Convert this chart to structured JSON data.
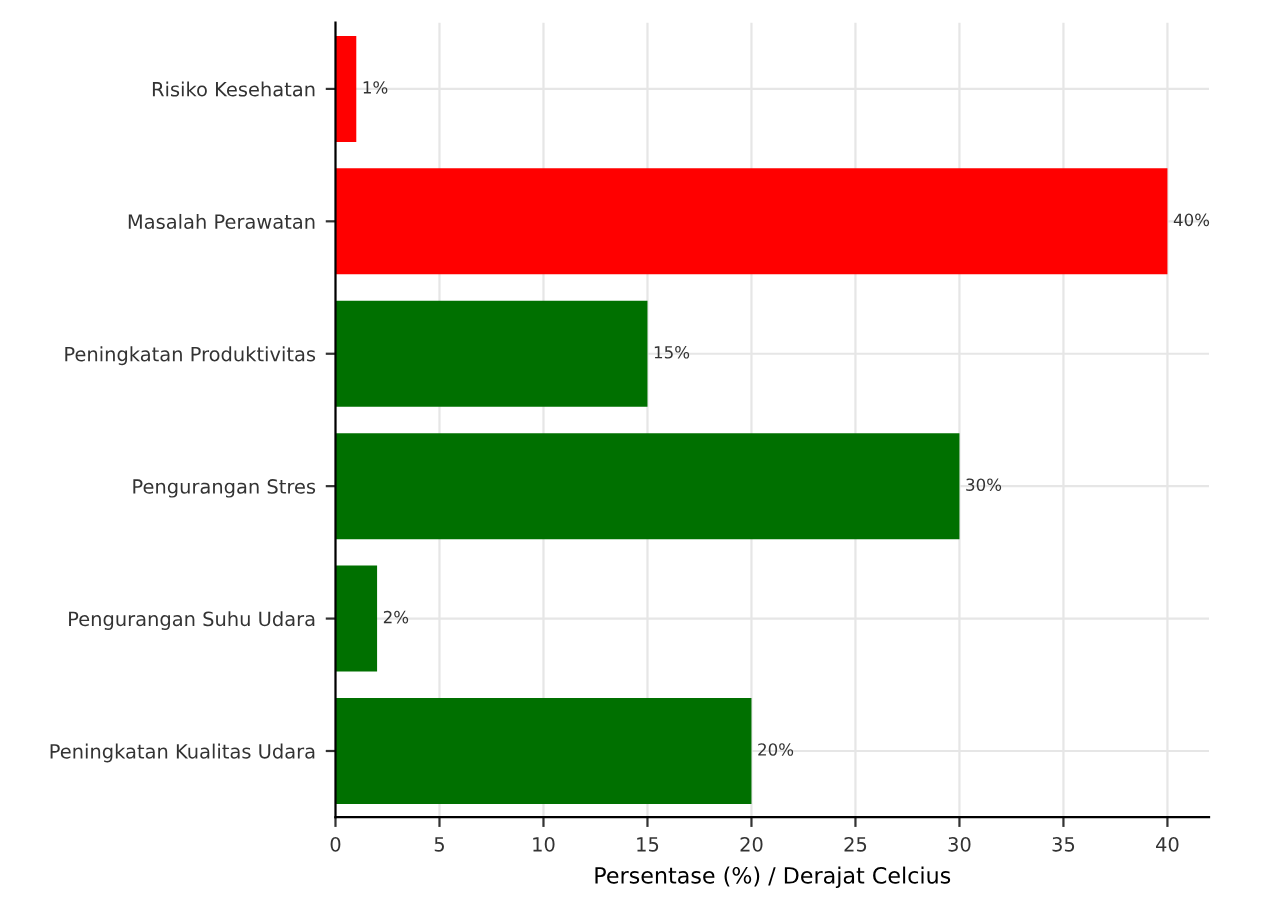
{
  "chart_data": {
    "type": "bar",
    "orientation": "horizontal",
    "xlabel": "Persentase (%) / Derajat Celcius",
    "categories": [
      "Risiko Kesehatan",
      "Masalah Perawatan",
      "Peningkatan Produktivitas",
      "Pengurangan Stres",
      "Pengurangan Suhu Udara",
      "Peningkatan Kualitas Udara"
    ],
    "values": [
      1,
      40,
      15,
      30,
      2,
      20
    ],
    "value_labels": [
      "1%",
      "40%",
      "15%",
      "30%",
      "2%",
      "20%"
    ],
    "colors": [
      "#ff0000",
      "#ff0000",
      "#007000",
      "#007000",
      "#007000",
      "#007000"
    ],
    "xlim": [
      0,
      42
    ],
    "xticks": [
      0,
      5,
      10,
      15,
      20,
      25,
      30,
      35,
      40
    ],
    "grid": true
  }
}
